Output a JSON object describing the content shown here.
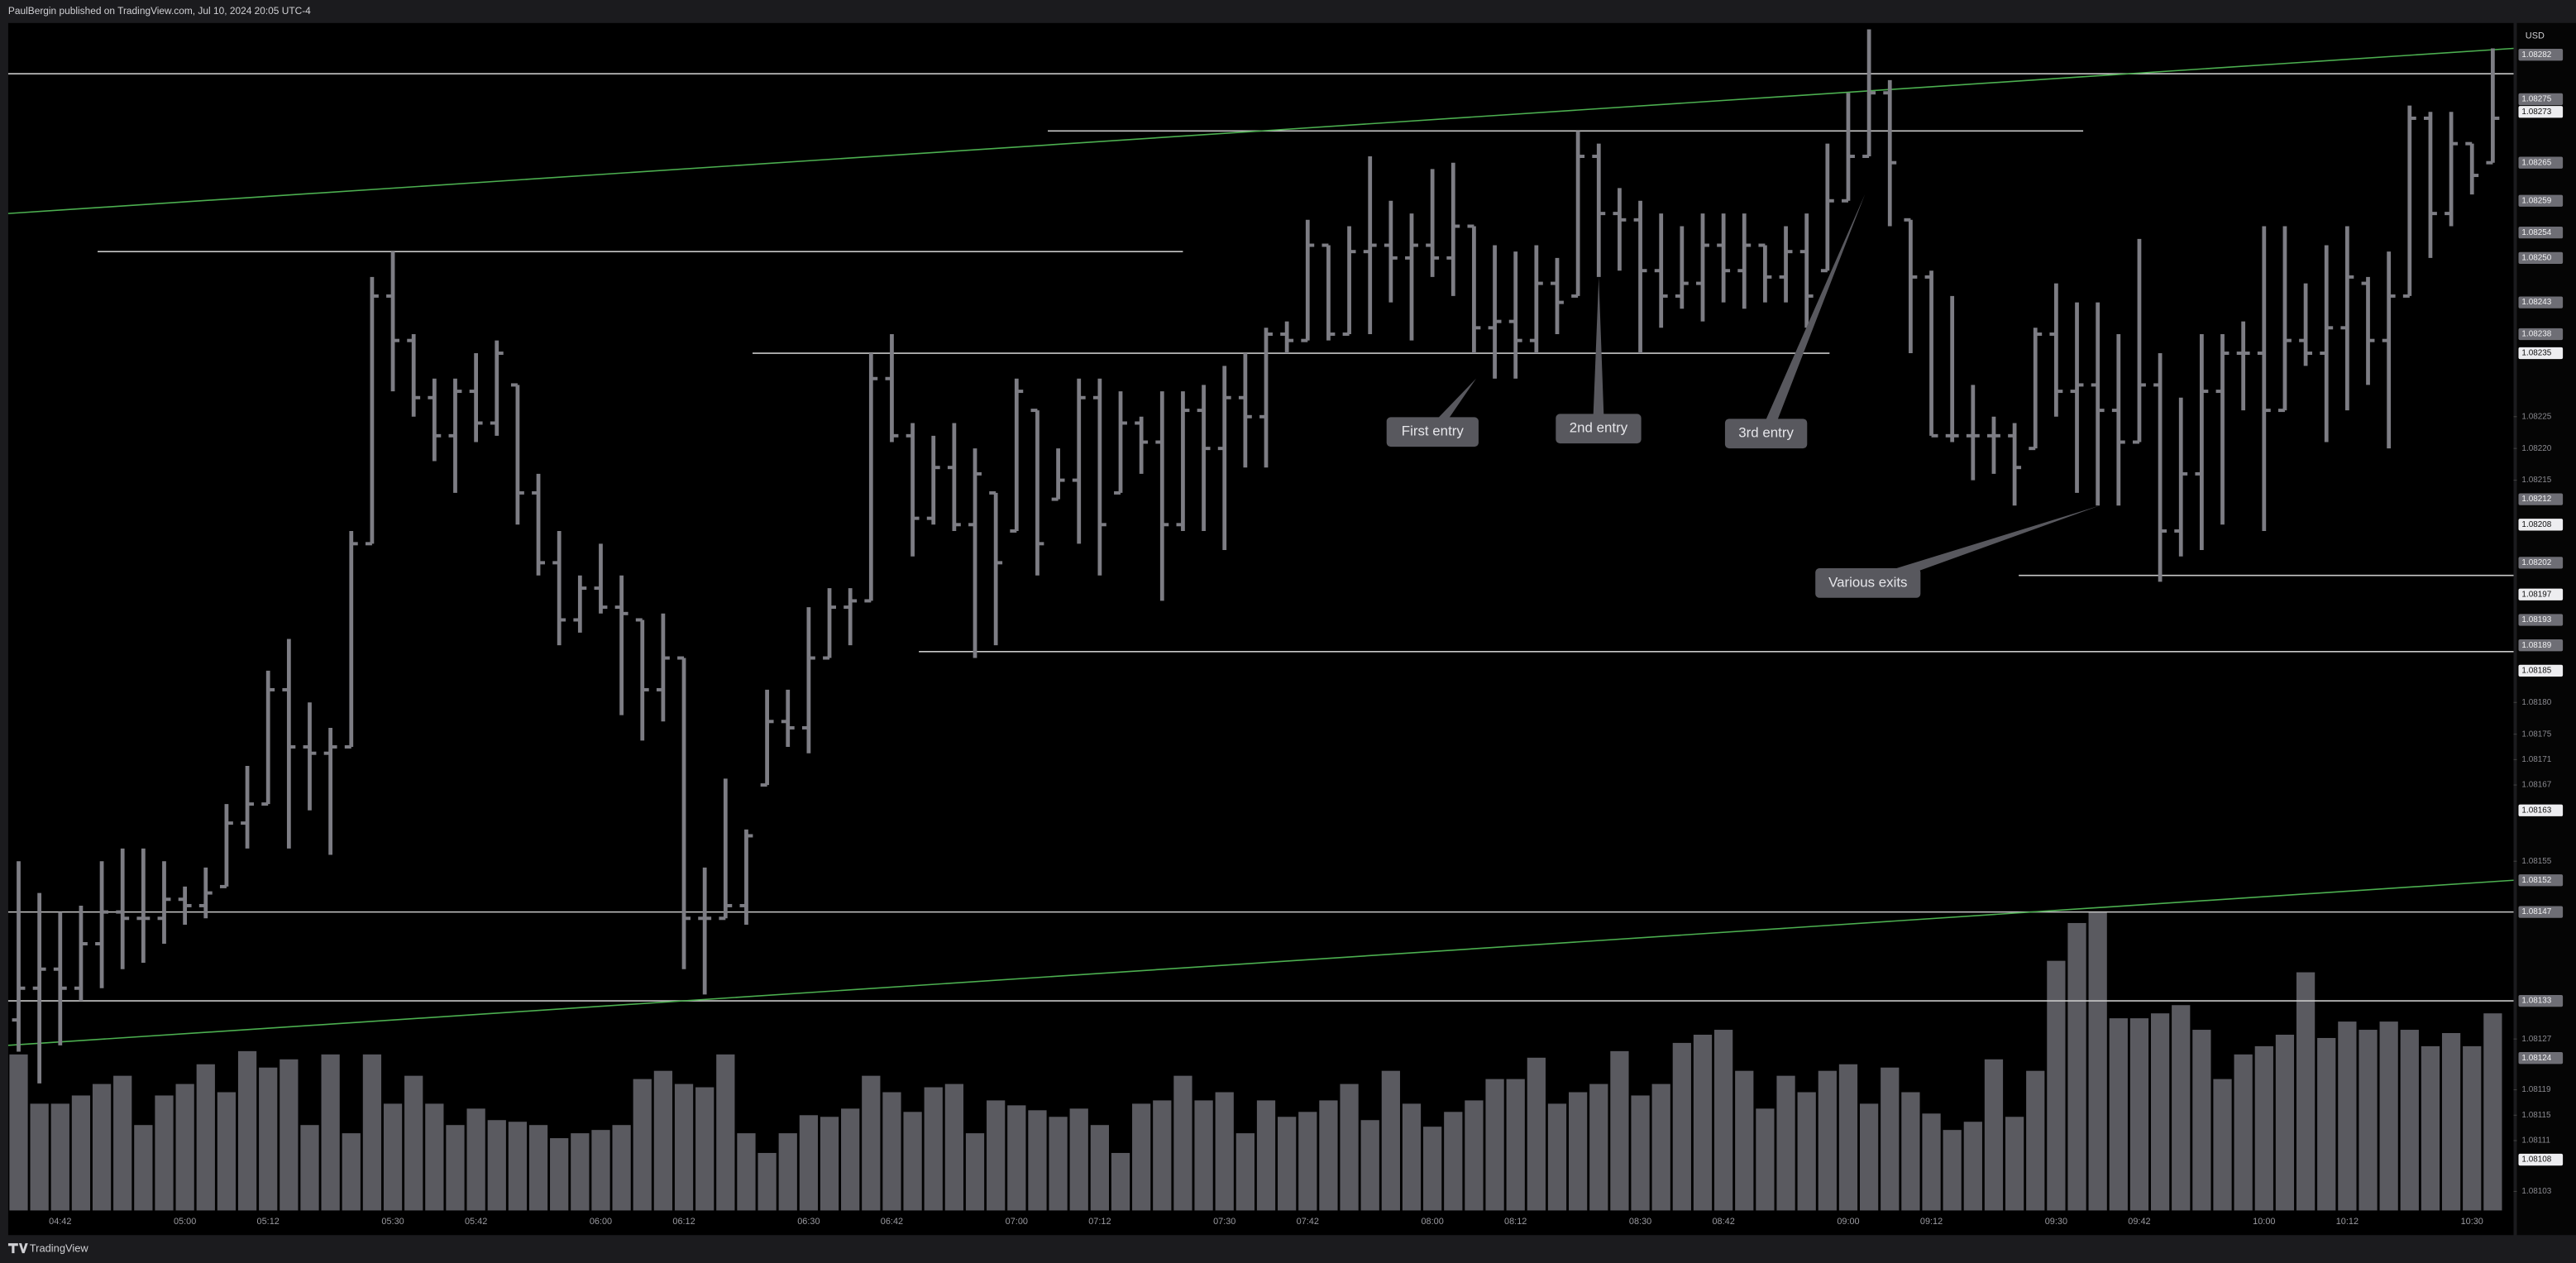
{
  "header": "PaulBergin published on TradingView.com, Jul 10, 2024 20:05 UTC-4",
  "footer": "TradingView",
  "chart_data": {
    "type": "ohlc",
    "currency": "USD",
    "categories": [
      null,
      null,
      "04:42",
      null,
      null,
      null,
      null,
      null,
      "05:00",
      null,
      null,
      null,
      "05:12",
      null,
      null,
      null,
      null,
      null,
      "05:30",
      null,
      null,
      null,
      "05:42",
      null,
      null,
      null,
      null,
      null,
      "06:00",
      null,
      null,
      null,
      "06:12",
      null,
      null,
      null,
      null,
      null,
      "06:30",
      null,
      null,
      null,
      "06:42",
      null,
      null,
      null,
      null,
      null,
      "07:00",
      null,
      null,
      null,
      "07:12",
      null,
      null,
      null,
      null,
      null,
      "07:30",
      null,
      null,
      null,
      "07:42",
      null,
      null,
      null,
      null,
      null,
      "08:00",
      null,
      null,
      null,
      "08:12",
      null,
      null,
      null,
      null,
      null,
      "08:30",
      null,
      null,
      null,
      "08:42",
      null,
      null,
      null,
      null,
      null,
      "09:00",
      null,
      null,
      null,
      "09:12",
      null,
      null,
      null,
      null,
      null,
      "09:30",
      null,
      null,
      null,
      "09:42",
      null,
      null,
      null,
      null,
      null,
      "10:00",
      null,
      null,
      null,
      "10:12",
      null,
      null,
      null,
      null,
      null,
      "10:30",
      null
    ],
    "open": [
      1.0813,
      1.08135,
      1.08138,
      1.08135,
      1.08142,
      1.08147,
      1.08146,
      1.08146,
      1.08149,
      1.08148,
      1.08151,
      1.08161,
      1.08164,
      1.08182,
      1.08173,
      1.08172,
      1.08173,
      1.08205,
      1.08244,
      1.08237,
      1.08228,
      1.08222,
      1.08229,
      1.08224,
      1.0823,
      1.08213,
      1.08202,
      1.08193,
      1.08198,
      1.08195,
      1.08193,
      1.08182,
      1.08187,
      1.08146,
      1.08146,
      1.08148,
      1.08167,
      1.08177,
      1.08176,
      1.08187,
      1.08195,
      1.08196,
      1.08231,
      1.08222,
      1.08209,
      1.08217,
      1.08208,
      1.08213,
      1.08207,
      1.08226,
      1.08212,
      1.08215,
      1.08228,
      1.08213,
      1.08224,
      1.08221,
      1.08208,
      1.08226,
      1.0822,
      1.08228,
      1.08225,
      1.08238,
      1.08237,
      1.08252,
      1.08238,
      1.08251,
      1.08252,
      1.0825,
      1.08252,
      1.0825,
      1.08255,
      1.08239,
      1.0824,
      1.08237,
      1.08246,
      1.08244,
      1.08266,
      1.08257,
      1.08256,
      1.08248,
      1.08244,
      1.08246,
      1.08252,
      1.08248,
      1.08252,
      1.08247,
      1.08251,
      1.08248,
      1.08259,
      1.08266,
      1.08276,
      1.08256,
      1.08247,
      1.08222,
      1.08222,
      1.08222,
      1.08222,
      1.0822,
      1.08238,
      1.08229,
      1.0823,
      1.08226,
      1.08221,
      1.0823,
      1.08207,
      1.08216,
      1.08229,
      1.08235,
      1.08235,
      1.08226,
      1.08237,
      1.08235,
      1.08239,
      1.08246,
      1.08237,
      1.08244,
      1.08272,
      1.08257,
      1.08268,
      1.08265
    ],
    "high": [
      1.08155,
      1.0815,
      1.08147,
      1.08148,
      1.08155,
      1.08157,
      1.08157,
      1.08155,
      1.08151,
      1.08154,
      1.08164,
      1.0817,
      1.08185,
      1.0819,
      1.0818,
      1.08176,
      1.08207,
      1.08247,
      1.08251,
      1.08238,
      1.08231,
      1.08231,
      1.08235,
      1.08237,
      1.0823,
      1.08216,
      1.08207,
      1.082,
      1.08205,
      1.082,
      1.08193,
      1.08194,
      1.08187,
      1.08154,
      1.08168,
      1.0816,
      1.08182,
      1.08182,
      1.08195,
      1.08198,
      1.08198,
      1.08235,
      1.08238,
      1.08224,
      1.08222,
      1.08224,
      1.0822,
      1.08213,
      1.08231,
      1.08226,
      1.0822,
      1.08231,
      1.08231,
      1.08229,
      1.08225,
      1.08229,
      1.08229,
      1.0823,
      1.08233,
      1.08235,
      1.08239,
      1.0824,
      1.08256,
      1.08252,
      1.08255,
      1.08266,
      1.08259,
      1.08257,
      1.08264,
      1.08265,
      1.08255,
      1.08252,
      1.08251,
      1.08252,
      1.0825,
      1.0827,
      1.08268,
      1.08261,
      1.08259,
      1.08257,
      1.08255,
      1.08257,
      1.08257,
      1.08257,
      1.08252,
      1.08255,
      1.08257,
      1.08268,
      1.08276,
      1.08286,
      1.08278,
      1.08256,
      1.08248,
      1.08244,
      1.0823,
      1.08225,
      1.08224,
      1.08239,
      1.08246,
      1.08243,
      1.08243,
      1.08238,
      1.08253,
      1.08235,
      1.08228,
      1.08238,
      1.08238,
      1.0824,
      1.08255,
      1.08255,
      1.08246,
      1.08252,
      1.08255,
      1.08247,
      1.08251,
      1.08274,
      1.08273,
      1.08273,
      1.08268,
      1.08283
    ],
    "low": [
      1.08125,
      1.0812,
      1.08126,
      1.08133,
      1.08135,
      1.08138,
      1.08139,
      1.08142,
      1.08145,
      1.08146,
      1.08151,
      1.08157,
      1.08164,
      1.08157,
      1.08163,
      1.08156,
      1.08173,
      1.08205,
      1.08229,
      1.08225,
      1.08218,
      1.08213,
      1.08221,
      1.08222,
      1.08208,
      1.082,
      1.08189,
      1.08191,
      1.08194,
      1.08178,
      1.08174,
      1.08177,
      1.08138,
      1.08134,
      1.08146,
      1.08145,
      1.08167,
      1.08173,
      1.08172,
      1.08187,
      1.08189,
      1.08196,
      1.08221,
      1.08203,
      1.08208,
      1.08207,
      1.08187,
      1.08189,
      1.08207,
      1.082,
      1.08212,
      1.08205,
      1.082,
      1.08213,
      1.08216,
      1.08196,
      1.08207,
      1.08207,
      1.08204,
      1.08217,
      1.08217,
      1.08235,
      1.08237,
      1.08237,
      1.08238,
      1.08238,
      1.08243,
      1.08237,
      1.08247,
      1.08244,
      1.08235,
      1.08231,
      1.08231,
      1.08235,
      1.08238,
      1.08244,
      1.08247,
      1.08248,
      1.08235,
      1.08239,
      1.08242,
      1.0824,
      1.08243,
      1.08242,
      1.08243,
      1.08243,
      1.08239,
      1.08248,
      1.08259,
      1.08266,
      1.08255,
      1.08235,
      1.08222,
      1.08221,
      1.08215,
      1.08216,
      1.08211,
      1.0822,
      1.08225,
      1.08213,
      1.08211,
      1.08211,
      1.08221,
      1.08199,
      1.08203,
      1.08204,
      1.08208,
      1.08226,
      1.08207,
      1.08226,
      1.08233,
      1.08221,
      1.08226,
      1.0823,
      1.0822,
      1.08244,
      1.0825,
      1.08255,
      1.0826,
      1.08265
    ],
    "close": [
      1.08135,
      1.08138,
      1.08135,
      1.08142,
      1.08147,
      1.08146,
      1.08146,
      1.08149,
      1.08148,
      1.0815,
      1.08161,
      1.08164,
      1.08182,
      1.08173,
      1.08172,
      1.08173,
      1.08205,
      1.08244,
      1.08237,
      1.08228,
      1.08222,
      1.08229,
      1.08224,
      1.08235,
      1.08213,
      1.08202,
      1.08193,
      1.08198,
      1.08195,
      1.08194,
      1.08182,
      1.08187,
      1.08146,
      1.08146,
      1.08148,
      1.08159,
      1.08177,
      1.08176,
      1.08187,
      1.08195,
      1.08196,
      1.08231,
      1.08222,
      1.08209,
      1.08217,
      1.08208,
      1.08216,
      1.08202,
      1.08229,
      1.08205,
      1.08215,
      1.08228,
      1.08208,
      1.08224,
      1.08221,
      1.08208,
      1.08226,
      1.0822,
      1.08228,
      1.08225,
      1.08238,
      1.08237,
      1.08252,
      1.08238,
      1.08251,
      1.08252,
      1.0825,
      1.08252,
      1.0825,
      1.08255,
      1.08239,
      1.0824,
      1.08237,
      1.08246,
      1.08243,
      1.08266,
      1.08257,
      1.08256,
      1.08248,
      1.08244,
      1.08246,
      1.08252,
      1.08248,
      1.08252,
      1.08247,
      1.08251,
      1.08244,
      1.08259,
      1.08266,
      1.08276,
      1.08265,
      1.08247,
      1.08222,
      1.08222,
      1.08222,
      1.08222,
      1.08217,
      1.08238,
      1.08229,
      1.0823,
      1.08226,
      1.08221,
      1.0823,
      1.08207,
      1.08216,
      1.08229,
      1.08235,
      1.08235,
      1.08226,
      1.08237,
      1.08235,
      1.08239,
      1.08247,
      1.08237,
      1.08244,
      1.08272,
      1.08257,
      1.08268,
      1.08263,
      1.08272
    ],
    "volume": [
      95,
      65,
      65,
      70,
      77,
      82,
      52,
      70,
      77,
      89,
      72,
      97,
      87,
      92,
      52,
      95,
      47,
      95,
      65,
      82,
      65,
      52,
      62,
      55,
      54,
      52,
      44,
      47,
      49,
      52,
      80,
      85,
      77,
      75,
      95,
      47,
      35,
      47,
      58,
      57,
      62,
      82,
      72,
      60,
      75,
      77,
      47,
      67,
      64,
      61,
      57,
      62,
      52,
      35,
      65,
      67,
      82,
      67,
      72,
      47,
      67,
      57,
      60,
      67,
      77,
      55,
      85,
      65,
      51,
      60,
      67,
      80,
      80,
      93,
      65,
      72,
      77,
      97,
      70,
      77,
      102,
      107,
      110,
      85,
      62,
      82,
      72,
      85,
      89,
      65,
      87,
      72,
      59,
      49,
      54,
      92,
      57,
      85,
      152,
      175,
      182,
      117,
      117,
      120,
      125,
      110,
      80,
      95,
      100,
      107,
      145,
      105,
      115,
      110,
      115,
      110,
      100,
      108,
      100,
      120
    ],
    "color": "#7d7d84",
    "volume_color": "#5a5a60",
    "xlim": [
      -0.5,
      120
    ],
    "ylim": [
      1.081,
      1.08287
    ],
    "yticks": [
      1.08225,
      {
        "value": 1.0822,
        "label": "1.08220"
      },
      1.08215,
      {
        "value": 1.0818,
        "label": "1.08180"
      },
      1.08175,
      1.08171,
      1.08167,
      1.08155,
      1.08127,
      1.08119,
      1.08115,
      1.08111,
      1.08103
    ],
    "price_labels": [
      1.08282,
      1.08275,
      1.08265,
      1.08259,
      1.08254,
      {
        "value": 1.0825,
        "label": "1.08250"
      },
      1.08243,
      1.08238,
      1.08212,
      1.08202,
      1.08193,
      1.08189,
      1.08152,
      1.08147,
      1.08133,
      1.08124
    ],
    "highlight_labels": [
      1.08273,
      1.08235,
      1.08208,
      1.08197,
      1.08185,
      1.08163,
      1.08108
    ],
    "hlines": [
      {
        "value": 1.08279,
        "from": -0.5,
        "to": 120
      },
      {
        "value": 1.0827,
        "from": 49.5,
        "to": 99.3
      },
      {
        "value": 1.08251,
        "from": 3.8,
        "to": 56
      },
      {
        "value": 1.08235,
        "from": 35.3,
        "to": 87.1
      },
      {
        "value": 1.082,
        "from": 96.2,
        "to": 120
      },
      {
        "value": 1.08188,
        "from": 43.3,
        "to": 120
      },
      {
        "value": 1.08147,
        "from": -0.5,
        "to": 120
      },
      {
        "value": 1.08133,
        "from": -0.5,
        "to": 120
      }
    ],
    "hline_color": "#c8c8c8",
    "trendlines": [
      {
        "from": [
          -0.5,
          1.08257
        ],
        "to": [
          120,
          1.08283
        ]
      },
      {
        "from": [
          -0.5,
          1.08126
        ],
        "to": [
          120,
          1.08152
        ]
      }
    ],
    "trend_color": "#4caf50",
    "annotations": [
      {
        "text": "First entry",
        "x": 70.1,
        "price": 1.08231
      },
      {
        "text": "2nd entry",
        "x": 76,
        "price": 1.08247
      },
      {
        "text": "3rd entry",
        "x": 88.8,
        "price": 1.0826
      },
      {
        "text": "Various exits",
        "x": 100.1,
        "price": 1.08211
      }
    ]
  }
}
